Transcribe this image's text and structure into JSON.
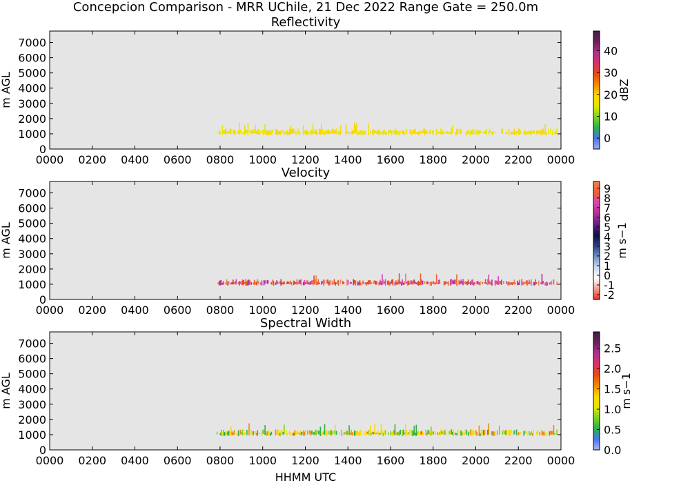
{
  "figure": {
    "suptitle": "Concepcion Comparison - MRR UChile, 21 Dec 2022 Range Gate = 250.0m",
    "xlabel": "HHMM UTC",
    "background": "#e5e5e5"
  },
  "chart_data": [
    {
      "type": "heatmap",
      "title": "Reflectivity",
      "ylabel": "m AGL",
      "xlim": [
        0,
        1440
      ],
      "ylim": [
        0,
        7750
      ],
      "x_ticks": [
        "0000",
        "0200",
        "0400",
        "0600",
        "0800",
        "1000",
        "1200",
        "1400",
        "1600",
        "1800",
        "2000",
        "2200",
        "0000"
      ],
      "y_ticks": [
        0,
        1000,
        2000,
        3000,
        4000,
        5000,
        6000,
        7000
      ],
      "colorbar": {
        "label": "dBZ",
        "range": [
          -5,
          49
        ],
        "ticks": [
          "0",
          "10",
          "20",
          "30",
          "40"
        ],
        "tick_values": [
          0,
          10,
          20,
          30,
          40
        ]
      },
      "echo_band": {
        "start_hhmm": "0750",
        "end_hhmm": "2350",
        "base_m": 900,
        "top_m": 1500,
        "typical": "20 dBZ"
      }
    },
    {
      "type": "heatmap",
      "title": "Velocity",
      "ylabel": "m s−1",
      "ylabel_left": "m AGL",
      "xlim": [
        0,
        1440
      ],
      "ylim": [
        0,
        7750
      ],
      "x_ticks": [
        "0000",
        "0200",
        "0400",
        "0600",
        "0800",
        "1000",
        "1200",
        "1400",
        "1600",
        "1800",
        "2000",
        "2200",
        "0000"
      ],
      "y_ticks": [
        0,
        1000,
        2000,
        3000,
        4000,
        5000,
        6000,
        7000
      ],
      "colorbar": {
        "label": "m s−1",
        "range": [
          -2.5,
          9.7
        ],
        "ticks": [
          "-2",
          "-1",
          "0",
          "1",
          "2",
          "3",
          "4",
          "5",
          "6",
          "7",
          "8",
          "9"
        ],
        "tick_values": [
          -2,
          -1,
          0,
          1,
          2,
          3,
          4,
          5,
          6,
          7,
          8,
          9
        ]
      },
      "echo_band": {
        "start_hhmm": "0750",
        "end_hhmm": "2350",
        "base_m": 900,
        "top_m": 1500,
        "typical": "6–7 m s−1"
      }
    },
    {
      "type": "heatmap",
      "title": "Spectral Width",
      "ylabel_left": "m AGL",
      "xlim": [
        0,
        1440
      ],
      "ylim": [
        0,
        7750
      ],
      "x_ticks": [
        "0000",
        "0200",
        "0400",
        "0600",
        "0800",
        "1000",
        "1200",
        "1400",
        "1600",
        "1800",
        "2000",
        "2200",
        "0000"
      ],
      "y_ticks": [
        0,
        1000,
        2000,
        3000,
        4000,
        5000,
        6000,
        7000
      ],
      "colorbar": {
        "label": "m s−1",
        "range": [
          0,
          2.9
        ],
        "ticks": [
          "0.0",
          "0.5",
          "1.0",
          "1.5",
          "2.0",
          "2.5"
        ],
        "tick_values": [
          0,
          0.5,
          1.0,
          1.5,
          2.0,
          2.5
        ]
      },
      "echo_band": {
        "start_hhmm": "0750",
        "end_hhmm": "2350",
        "base_m": 900,
        "top_m": 1500,
        "typical": "1–1.5 m s−1"
      }
    }
  ],
  "colors": {
    "refl": [
      "#9ab0f0",
      "#4a74e8",
      "#2eb04a",
      "#7ed321",
      "#e6e600",
      "#ffd400",
      "#f08a00",
      "#e84a10",
      "#d8306a",
      "#b03090",
      "#6a1f5a",
      "#402040"
    ],
    "vel": [
      "#e8302a",
      "#f4a090",
      "#ffffff",
      "#c8d8ee",
      "#7090c8",
      "#2a3f80",
      "#101040",
      "#602080",
      "#b03090",
      "#d846b0",
      "#f06030",
      "#f08050"
    ],
    "sw": [
      "#a6b6f6",
      "#4a74e8",
      "#2eb04a",
      "#7ed321",
      "#e6e600",
      "#ffd400",
      "#f08a00",
      "#e84a10",
      "#d8306a",
      "#b03090",
      "#6a1f5a",
      "#402040"
    ],
    "band_refl": [
      "#e6e600",
      "#f0e000",
      "#ffd400",
      "#e8e800"
    ],
    "band_vel": [
      "#f06030",
      "#e84a10",
      "#d846b0",
      "#b03090",
      "#f08050"
    ],
    "band_sw": [
      "#e6e600",
      "#ffd400",
      "#7ed321",
      "#f08a00",
      "#2eb04a"
    ]
  }
}
